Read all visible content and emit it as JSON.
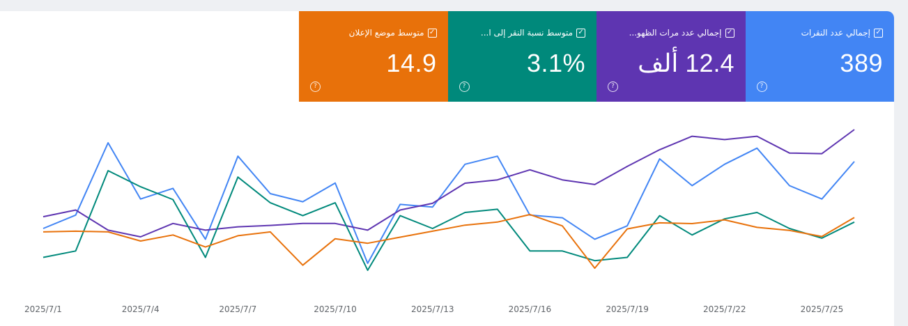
{
  "tiles": [
    {
      "label": "إجمالي عدد النقرات",
      "value": "389",
      "color": "#4285f4",
      "checked": true,
      "help": "?"
    },
    {
      "label": "إجمالي عدد مرات الظهو...",
      "value": "12.4 ألف",
      "color": "#5e35b1",
      "checked": true,
      "help": "?"
    },
    {
      "label": "متوسط نسبة النقر إلى ا...",
      "value": "3.1%",
      "color": "#00897b",
      "checked": true,
      "help": "?"
    },
    {
      "label": "متوسط موضع الإعلان",
      "value": "14.9",
      "color": "#e8710a",
      "checked": true,
      "help": "?"
    }
  ],
  "chart_data": {
    "type": "line",
    "x": [
      "2025/7/1",
      "2025/7/2",
      "2025/7/3",
      "2025/7/4",
      "2025/7/5",
      "2025/7/6",
      "2025/7/7",
      "2025/7/8",
      "2025/7/9",
      "2025/7/10",
      "2025/7/11",
      "2025/7/12",
      "2025/7/13",
      "2025/7/14",
      "2025/7/15",
      "2025/7/16",
      "2025/7/17",
      "2025/7/18",
      "2025/7/19",
      "2025/7/20",
      "2025/7/21",
      "2025/7/22",
      "2025/7/23",
      "2025/7/24",
      "2025/7/25",
      "2025/7/26"
    ],
    "tick_labels": [
      "2025/7/1",
      "2025/7/4",
      "2025/7/7",
      "2025/7/10",
      "2025/7/13",
      "2025/7/16",
      "2025/7/19",
      "2025/7/22",
      "2025/7/25"
    ],
    "grid": false,
    "series": [
      {
        "name": "إجمالي عدد النقرات",
        "color": "#4285f4",
        "values": [
          51,
          56,
          83,
          62,
          66,
          47,
          78,
          64,
          61,
          68,
          38,
          60,
          59,
          75,
          78,
          56,
          55,
          47,
          52,
          77,
          67,
          75,
          81,
          67,
          62,
          76
        ]
      },
      {
        "name": "إجمالي عدد مرات الظهو...",
        "color": "#5e35b1",
        "values": [
          63,
          64,
          61,
          60,
          62,
          61,
          61.5,
          61.7,
          62,
          62,
          61,
          64,
          65,
          68,
          68.5,
          70,
          68.5,
          67.8,
          70.5,
          73,
          75,
          74.5,
          75,
          72.5,
          72.4,
          76
        ]
      },
      {
        "name": "متوسط نسبة النقر إلى ا...",
        "color": "#00897b",
        "values": [
          2.0,
          2.2,
          4.7,
          4.2,
          3.8,
          2.0,
          4.5,
          3.7,
          3.3,
          3.7,
          1.6,
          3.3,
          2.9,
          3.4,
          3.5,
          2.2,
          2.2,
          1.9,
          2.0,
          3.3,
          2.7,
          3.2,
          3.4,
          2.9,
          2.6,
          3.1
        ]
      },
      {
        "name": "متوسط موضع الإعلان",
        "color": "#e8710a",
        "values": [
          15.4,
          15.5,
          15.4,
          14.2,
          15.0,
          13.4,
          14.9,
          15.4,
          11.0,
          14.5,
          13.9,
          14.7,
          15.5,
          16.3,
          16.7,
          17.7,
          16.2,
          10.6,
          15.8,
          16.6,
          16.5,
          17.0,
          16.0,
          15.6,
          14.8,
          17.3
        ]
      }
    ]
  }
}
